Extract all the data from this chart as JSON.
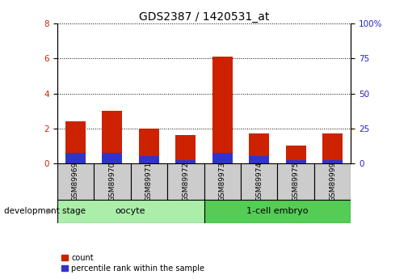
{
  "title": "GDS2387 / 1420531_at",
  "samples": [
    "GSM89969",
    "GSM89970",
    "GSM89971",
    "GSM89972",
    "GSM89973",
    "GSM89974",
    "GSM89975",
    "GSM89999"
  ],
  "count_values": [
    2.4,
    3.0,
    2.0,
    1.6,
    6.1,
    1.7,
    1.0,
    1.7
  ],
  "percentile_values": [
    0.6,
    0.6,
    0.4,
    0.2,
    0.6,
    0.4,
    0.2,
    0.2
  ],
  "ylim_left": [
    0,
    8
  ],
  "ylim_right": [
    0,
    100
  ],
  "yticks_left": [
    0,
    2,
    4,
    6,
    8
  ],
  "yticks_right": [
    0,
    25,
    50,
    75,
    100
  ],
  "bar_color_red": "#cc2200",
  "bar_color_blue": "#3333cc",
  "bar_width": 0.55,
  "groups": [
    {
      "label": "oocyte",
      "start": 0,
      "end": 3,
      "color": "#aaeeaa"
    },
    {
      "label": "1-cell embryo",
      "start": 4,
      "end": 7,
      "color": "#55cc55"
    }
  ],
  "group_box_color": "#cccccc",
  "left_tick_color": "#cc2200",
  "right_tick_color": "#2222cc",
  "grid_color": "#000000",
  "legend_count_label": "count",
  "legend_percentile_label": "percentile rank within the sample",
  "dev_stage_label": "development stage",
  "title_fontsize": 10,
  "tick_fontsize": 7.5,
  "sample_fontsize": 6.5,
  "group_fontsize": 8,
  "legend_fontsize": 7,
  "dev_stage_fontsize": 7.5
}
